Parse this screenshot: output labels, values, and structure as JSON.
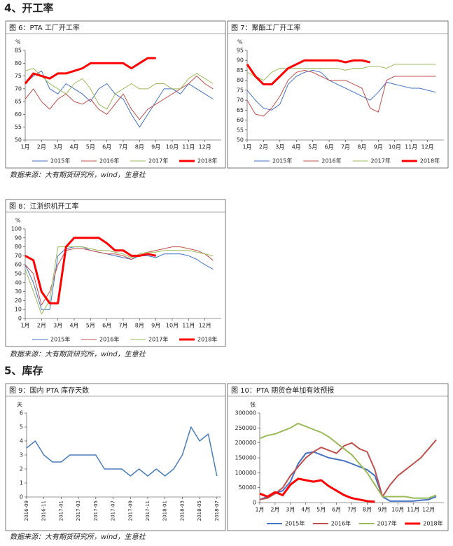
{
  "headings": [
    "4、开工率",
    "5、库存"
  ],
  "sources": [
    "数据来源：大有期货研究所，wind，生意社",
    "数据来源：大有期货研究所，wind，生意社",
    "数据来源：大有期货研究所，wind，生意社"
  ],
  "chart_data": [
    {
      "type": "line",
      "title": "图 6：PTA 工厂开工率",
      "y_label": "%",
      "x": [
        1,
        1.5,
        2,
        2.5,
        3,
        3.5,
        4,
        4.5,
        5,
        5.5,
        6,
        6.5,
        7,
        7.5,
        8,
        8.5,
        9,
        9.5,
        10,
        10.5,
        11,
        11.5,
        12,
        12.5
      ],
      "xlim": [
        1,
        13
      ],
      "xticks": [
        {
          "value": 1,
          "label": "1月"
        },
        {
          "value": 2,
          "label": "2月"
        },
        {
          "value": 3,
          "label": "3月"
        },
        {
          "value": 4,
          "label": "4月"
        },
        {
          "value": 5,
          "label": "5月"
        },
        {
          "value": 6,
          "label": "6月"
        },
        {
          "value": 7,
          "label": "7月"
        },
        {
          "value": 8,
          "label": "8月"
        },
        {
          "value": 9,
          "label": "9月"
        },
        {
          "value": 10,
          "label": "10月"
        },
        {
          "value": 11,
          "label": "11月"
        },
        {
          "value": 12,
          "label": "12月"
        }
      ],
      "ylim": [
        50,
        85
      ],
      "yticks": [
        50,
        55,
        60,
        65,
        70,
        75,
        80,
        85
      ],
      "series": [
        {
          "name": "2015年",
          "color": "#4472c4",
          "line_width": 1,
          "values": [
            72,
            75,
            77,
            70,
            68,
            72,
            70,
            68,
            65,
            70,
            72,
            68,
            66,
            60,
            55,
            60,
            65,
            70,
            70,
            68,
            72,
            70,
            68,
            66
          ]
        },
        {
          "name": "2016年",
          "color": "#c0504d",
          "line_width": 1,
          "values": [
            66,
            70,
            65,
            62,
            66,
            68,
            65,
            64,
            66,
            62,
            60,
            64,
            68,
            62,
            58,
            62,
            64,
            66,
            68,
            70,
            72,
            75,
            72,
            70
          ]
        },
        {
          "name": "2017年",
          "color": "#9bbb59",
          "line_width": 1,
          "values": [
            77,
            78,
            75,
            72,
            70,
            68,
            72,
            74,
            70,
            64,
            62,
            68,
            70,
            72,
            70,
            70,
            72,
            72,
            70,
            70,
            74,
            76,
            74,
            72
          ]
        },
        {
          "name": "2018年",
          "color": "#ff0000",
          "line_width": 3,
          "values": [
            72,
            76,
            75,
            74,
            76,
            76,
            77,
            78,
            80,
            80,
            80,
            80,
            80,
            78,
            80,
            82,
            82,
            null,
            null,
            null,
            null,
            null,
            null,
            null
          ]
        }
      ]
    },
    {
      "type": "line",
      "title": "图 7：聚酯工厂开工率",
      "y_label": "%",
      "x": [
        1,
        1.5,
        2,
        2.5,
        3,
        3.5,
        4,
        4.5,
        5,
        5.5,
        6,
        6.5,
        7,
        7.5,
        8,
        8.5,
        9,
        9.5,
        10,
        10.5,
        11,
        11.5,
        12,
        12.5
      ],
      "xlim": [
        1,
        13
      ],
      "xticks": [
        {
          "value": 1,
          "label": "1月"
        },
        {
          "value": 2,
          "label": "2月"
        },
        {
          "value": 3,
          "label": "3月"
        },
        {
          "value": 4,
          "label": "4月"
        },
        {
          "value": 5,
          "label": "5月"
        },
        {
          "value": 6,
          "label": "6月"
        },
        {
          "value": 7,
          "label": "7月"
        },
        {
          "value": 8,
          "label": "8月"
        },
        {
          "value": 9,
          "label": "9月"
        },
        {
          "value": 10,
          "label": "10月"
        },
        {
          "value": 11,
          "label": "11月"
        },
        {
          "value": 12,
          "label": "12月"
        }
      ],
      "ylim": [
        50,
        95
      ],
      "yticks": [
        50,
        55,
        60,
        65,
        70,
        75,
        80,
        85,
        90,
        95
      ],
      "series": [
        {
          "name": "2015年",
          "color": "#4472c4",
          "line_width": 1,
          "values": [
            75,
            70,
            66,
            65,
            68,
            78,
            82,
            84,
            85,
            84,
            80,
            78,
            76,
            74,
            72,
            70,
            74,
            79,
            78,
            77,
            76,
            76,
            75,
            74
          ]
        },
        {
          "name": "2016年",
          "color": "#c0504d",
          "line_width": 1,
          "values": [
            70,
            63,
            62,
            66,
            72,
            80,
            84,
            85,
            84,
            82,
            80,
            80,
            80,
            78,
            76,
            66,
            64,
            80,
            82,
            82,
            82,
            82,
            82,
            82
          ]
        },
        {
          "name": "2017年",
          "color": "#9bbb59",
          "line_width": 1,
          "values": [
            84,
            82,
            80,
            84,
            86,
            86,
            86,
            86,
            86,
            86,
            86,
            86,
            85,
            86,
            86,
            87,
            87,
            86,
            88,
            88,
            88,
            88,
            88,
            88
          ]
        },
        {
          "name": "2018年",
          "color": "#ff0000",
          "line_width": 3,
          "values": [
            88,
            82,
            78,
            78,
            82,
            86,
            88,
            90,
            90,
            90,
            90,
            90,
            89,
            90,
            90,
            89,
            null,
            null,
            null,
            null,
            null,
            null,
            null,
            null
          ]
        }
      ]
    },
    {
      "type": "line",
      "title": "图 8：江浙织机开工率",
      "y_label": "%",
      "x": [
        1,
        1.5,
        2,
        2.5,
        3,
        3.5,
        4,
        4.5,
        5,
        5.5,
        6,
        6.5,
        7,
        7.5,
        8,
        8.5,
        9,
        9.5,
        10,
        10.5,
        11,
        11.5,
        12,
        12.5
      ],
      "xlim": [
        1,
        13
      ],
      "xticks": [
        {
          "value": 1,
          "label": "1月"
        },
        {
          "value": 2,
          "label": "2月"
        },
        {
          "value": 3,
          "label": "3月"
        },
        {
          "value": 4,
          "label": "4月"
        },
        {
          "value": 5,
          "label": "5月"
        },
        {
          "value": 6,
          "label": "6月"
        },
        {
          "value": 7,
          "label": "7月"
        },
        {
          "value": 8,
          "label": "8月"
        },
        {
          "value": 9,
          "label": "9月"
        },
        {
          "value": 10,
          "label": "10月"
        },
        {
          "value": 11,
          "label": "11月"
        },
        {
          "value": 12,
          "label": "12月"
        }
      ],
      "ylim": [
        0,
        100
      ],
      "yticks": [
        0,
        10,
        20,
        30,
        40,
        50,
        60,
        70,
        80,
        90,
        100
      ],
      "series": [
        {
          "name": "2015年",
          "color": "#4472c4",
          "line_width": 1,
          "values": [
            60,
            40,
            10,
            10,
            70,
            78,
            80,
            80,
            76,
            74,
            72,
            70,
            68,
            66,
            70,
            70,
            68,
            72,
            72,
            72,
            70,
            66,
            60,
            55
          ]
        },
        {
          "name": "2016年",
          "color": "#c0504d",
          "line_width": 1,
          "values": [
            60,
            50,
            15,
            30,
            60,
            76,
            78,
            78,
            76,
            74,
            72,
            72,
            70,
            66,
            72,
            74,
            76,
            78,
            80,
            80,
            78,
            76,
            72,
            65
          ]
        },
        {
          "name": "2017年",
          "color": "#9bbb59",
          "line_width": 1,
          "values": [
            55,
            30,
            5,
            20,
            80,
            80,
            80,
            80,
            78,
            76,
            76,
            74,
            72,
            68,
            72,
            74,
            74,
            76,
            76,
            76,
            76,
            74,
            72,
            70
          ]
        },
        {
          "name": "2018年",
          "color": "#ff0000",
          "line_width": 3,
          "values": [
            70,
            65,
            30,
            17,
            17,
            80,
            90,
            90,
            90,
            90,
            84,
            76,
            76,
            70,
            70,
            72,
            70,
            null,
            null,
            null,
            null,
            null,
            null,
            null
          ]
        }
      ]
    },
    {
      "type": "line",
      "title": "图 9：国内 PTA 库存天数",
      "y_label": "天",
      "x": [
        0,
        1,
        2,
        3,
        4,
        5,
        6,
        7,
        8,
        9,
        10,
        11,
        12,
        13,
        14,
        15,
        16,
        17,
        18,
        19,
        20,
        21,
        22
      ],
      "xlim": [
        0,
        22.5
      ],
      "xticks": [
        {
          "value": 0,
          "label": "2016-09"
        },
        {
          "value": 2,
          "label": "2016-11"
        },
        {
          "value": 4,
          "label": "2017-01"
        },
        {
          "value": 6,
          "label": "2017-03"
        },
        {
          "value": 8,
          "label": "2017-05"
        },
        {
          "value": 10,
          "label": "2017-07"
        },
        {
          "value": 12,
          "label": "2017-09"
        },
        {
          "value": 14,
          "label": "2017-11"
        },
        {
          "value": 16,
          "label": "2018-01"
        },
        {
          "value": 18,
          "label": "2018-03"
        },
        {
          "value": 20,
          "label": "2018-05"
        },
        {
          "value": 22,
          "label": "2018-07"
        }
      ],
      "ylim": [
        0,
        6
      ],
      "yticks": [
        0,
        1,
        2,
        3,
        4,
        5,
        6
      ],
      "series": [
        {
          "color": "#4a7ebb",
          "line_width": 1.5,
          "values": [
            3.5,
            4,
            3,
            2.5,
            2.5,
            3,
            3,
            3,
            3,
            2,
            2,
            2,
            1.5,
            2,
            1.5,
            2,
            1.5,
            2,
            3,
            5,
            4,
            4.5,
            1.5
          ]
        }
      ]
    },
    {
      "type": "line",
      "title": "图 10：PTA 期货仓单加有效预报",
      "y_label": "张",
      "x": [
        1,
        1.5,
        2,
        2.5,
        3,
        3.5,
        4,
        4.5,
        5,
        5.5,
        6,
        6.5,
        7,
        7.5,
        8,
        8.5,
        9,
        9.5,
        10,
        10.5,
        11,
        11.5,
        12,
        12.5
      ],
      "xlim": [
        1,
        13
      ],
      "xticks": [
        {
          "value": 1,
          "label": "1月"
        },
        {
          "value": 2,
          "label": "2月"
        },
        {
          "value": 3,
          "label": "3月"
        },
        {
          "value": 4,
          "label": "4月"
        },
        {
          "value": 5,
          "label": "5月"
        },
        {
          "value": 6,
          "label": "6月"
        },
        {
          "value": 7,
          "label": "7月"
        },
        {
          "value": 8,
          "label": "8月"
        },
        {
          "value": 9,
          "label": "9月"
        },
        {
          "value": 10,
          "label": "10月"
        },
        {
          "value": 11,
          "label": "11月"
        },
        {
          "value": 12,
          "label": "12月"
        }
      ],
      "ylim": [
        0,
        300000
      ],
      "yticks": [
        0,
        50000,
        100000,
        150000,
        200000,
        250000,
        300000
      ],
      "series": [
        {
          "name": "2015年",
          "color": "#4472c4",
          "line_width": 2,
          "values": [
            10000,
            20000,
            30000,
            40000,
            70000,
            130000,
            165000,
            170000,
            160000,
            150000,
            145000,
            140000,
            130000,
            120000,
            110000,
            90000,
            20000,
            5000,
            5000,
            5000,
            5000,
            8000,
            10000,
            20000
          ]
        },
        {
          "name": "2016年",
          "color": "#c0504d",
          "line_width": 2,
          "values": [
            10000,
            15000,
            30000,
            50000,
            90000,
            120000,
            150000,
            170000,
            185000,
            175000,
            165000,
            190000,
            200000,
            180000,
            170000,
            110000,
            20000,
            60000,
            90000,
            110000,
            130000,
            150000,
            180000,
            210000
          ]
        },
        {
          "name": "2017年",
          "color": "#9bbb59",
          "line_width": 2,
          "values": [
            215000,
            225000,
            230000,
            240000,
            250000,
            265000,
            255000,
            245000,
            235000,
            220000,
            200000,
            180000,
            160000,
            130000,
            100000,
            60000,
            20000,
            20000,
            20000,
            20000,
            15000,
            15000,
            15000,
            25000
          ]
        },
        {
          "name": "2018年",
          "color": "#ff0000",
          "line_width": 3,
          "values": [
            30000,
            20000,
            35000,
            25000,
            60000,
            80000,
            75000,
            70000,
            75000,
            55000,
            40000,
            25000,
            15000,
            10000,
            5000,
            3000,
            null,
            null,
            null,
            null,
            null,
            null,
            null,
            null
          ]
        }
      ]
    }
  ]
}
